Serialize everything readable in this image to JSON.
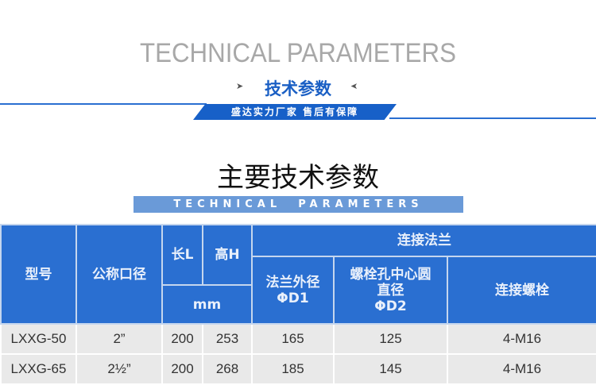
{
  "header": {
    "en_title": "TECHNICAL PARAMETERS",
    "cn_subtitle": "技术参数",
    "slogan": "盛达实力厂家  售后有保障"
  },
  "section": {
    "title": "主要技术参数",
    "banner": "TECHNICAL  PARAMETERS"
  },
  "table": {
    "headers": {
      "model": "型号",
      "nominal": "公称口径",
      "length": "长L",
      "height": "高H",
      "unit": "mm",
      "flange": "连接法兰",
      "d1_line1": "法兰外径",
      "d1_line2": "ΦD1",
      "d2_line1": "螺栓孔中心圆",
      "d2_line2": "直径",
      "d2_line3": "ΦD2",
      "bolts": "连接螺栓"
    },
    "rows": [
      {
        "model": "LXXG-50",
        "nominal": "2”",
        "L": "200",
        "H": "253",
        "D1": "165",
        "D2": "125",
        "bolts": "4-M16"
      },
      {
        "model": "LXXG-65",
        "nominal": "2½”",
        "L": "200",
        "H": "268",
        "D1": "185",
        "D2": "145",
        "bolts": "4-M16"
      }
    ]
  },
  "colors": {
    "accent": "#2a6fd1",
    "banner": "#6a9ad8"
  }
}
